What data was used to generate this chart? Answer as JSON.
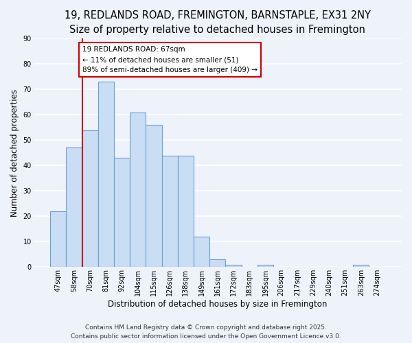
{
  "title_line1": "19, REDLANDS ROAD, FREMINGTON, BARNSTAPLE, EX31 2NY",
  "title_line2": "Size of property relative to detached houses in Fremington",
  "xlabel": "Distribution of detached houses by size in Fremington",
  "ylabel": "Number of detached properties",
  "bar_labels": [
    "47sqm",
    "58sqm",
    "70sqm",
    "81sqm",
    "92sqm",
    "104sqm",
    "115sqm",
    "126sqm",
    "138sqm",
    "149sqm",
    "161sqm",
    "172sqm",
    "183sqm",
    "195sqm",
    "206sqm",
    "217sqm",
    "229sqm",
    "240sqm",
    "251sqm",
    "263sqm",
    "274sqm"
  ],
  "bar_values": [
    22,
    47,
    54,
    73,
    43,
    61,
    56,
    44,
    44,
    12,
    3,
    1,
    0,
    1,
    0,
    0,
    0,
    0,
    0,
    1,
    0
  ],
  "bar_color": "#c9ddf5",
  "bar_edgecolor": "#6da0d0",
  "vline_color": "#cc0000",
  "vline_position": 1.5,
  "annotation_title": "19 REDLANDS ROAD: 67sqm",
  "annotation_line2": "← 11% of detached houses are smaller (51)",
  "annotation_line3": "89% of semi-detached houses are larger (409) →",
  "annotation_box_facecolor": "#ffffff",
  "annotation_box_edgecolor": "#cc0000",
  "ylim": [
    0,
    90
  ],
  "yticks": [
    0,
    10,
    20,
    30,
    40,
    50,
    60,
    70,
    80,
    90
  ],
  "footer_line1": "Contains HM Land Registry data © Crown copyright and database right 2025.",
  "footer_line2": "Contains public sector information licensed under the Open Government Licence v3.0.",
  "background_color": "#eef2fb",
  "grid_color": "#ffffff",
  "title_fontsize": 10.5,
  "subtitle_fontsize": 9.5,
  "tick_fontsize": 7,
  "label_fontsize": 8.5,
  "footer_fontsize": 6.5,
  "annotation_fontsize": 7.5
}
